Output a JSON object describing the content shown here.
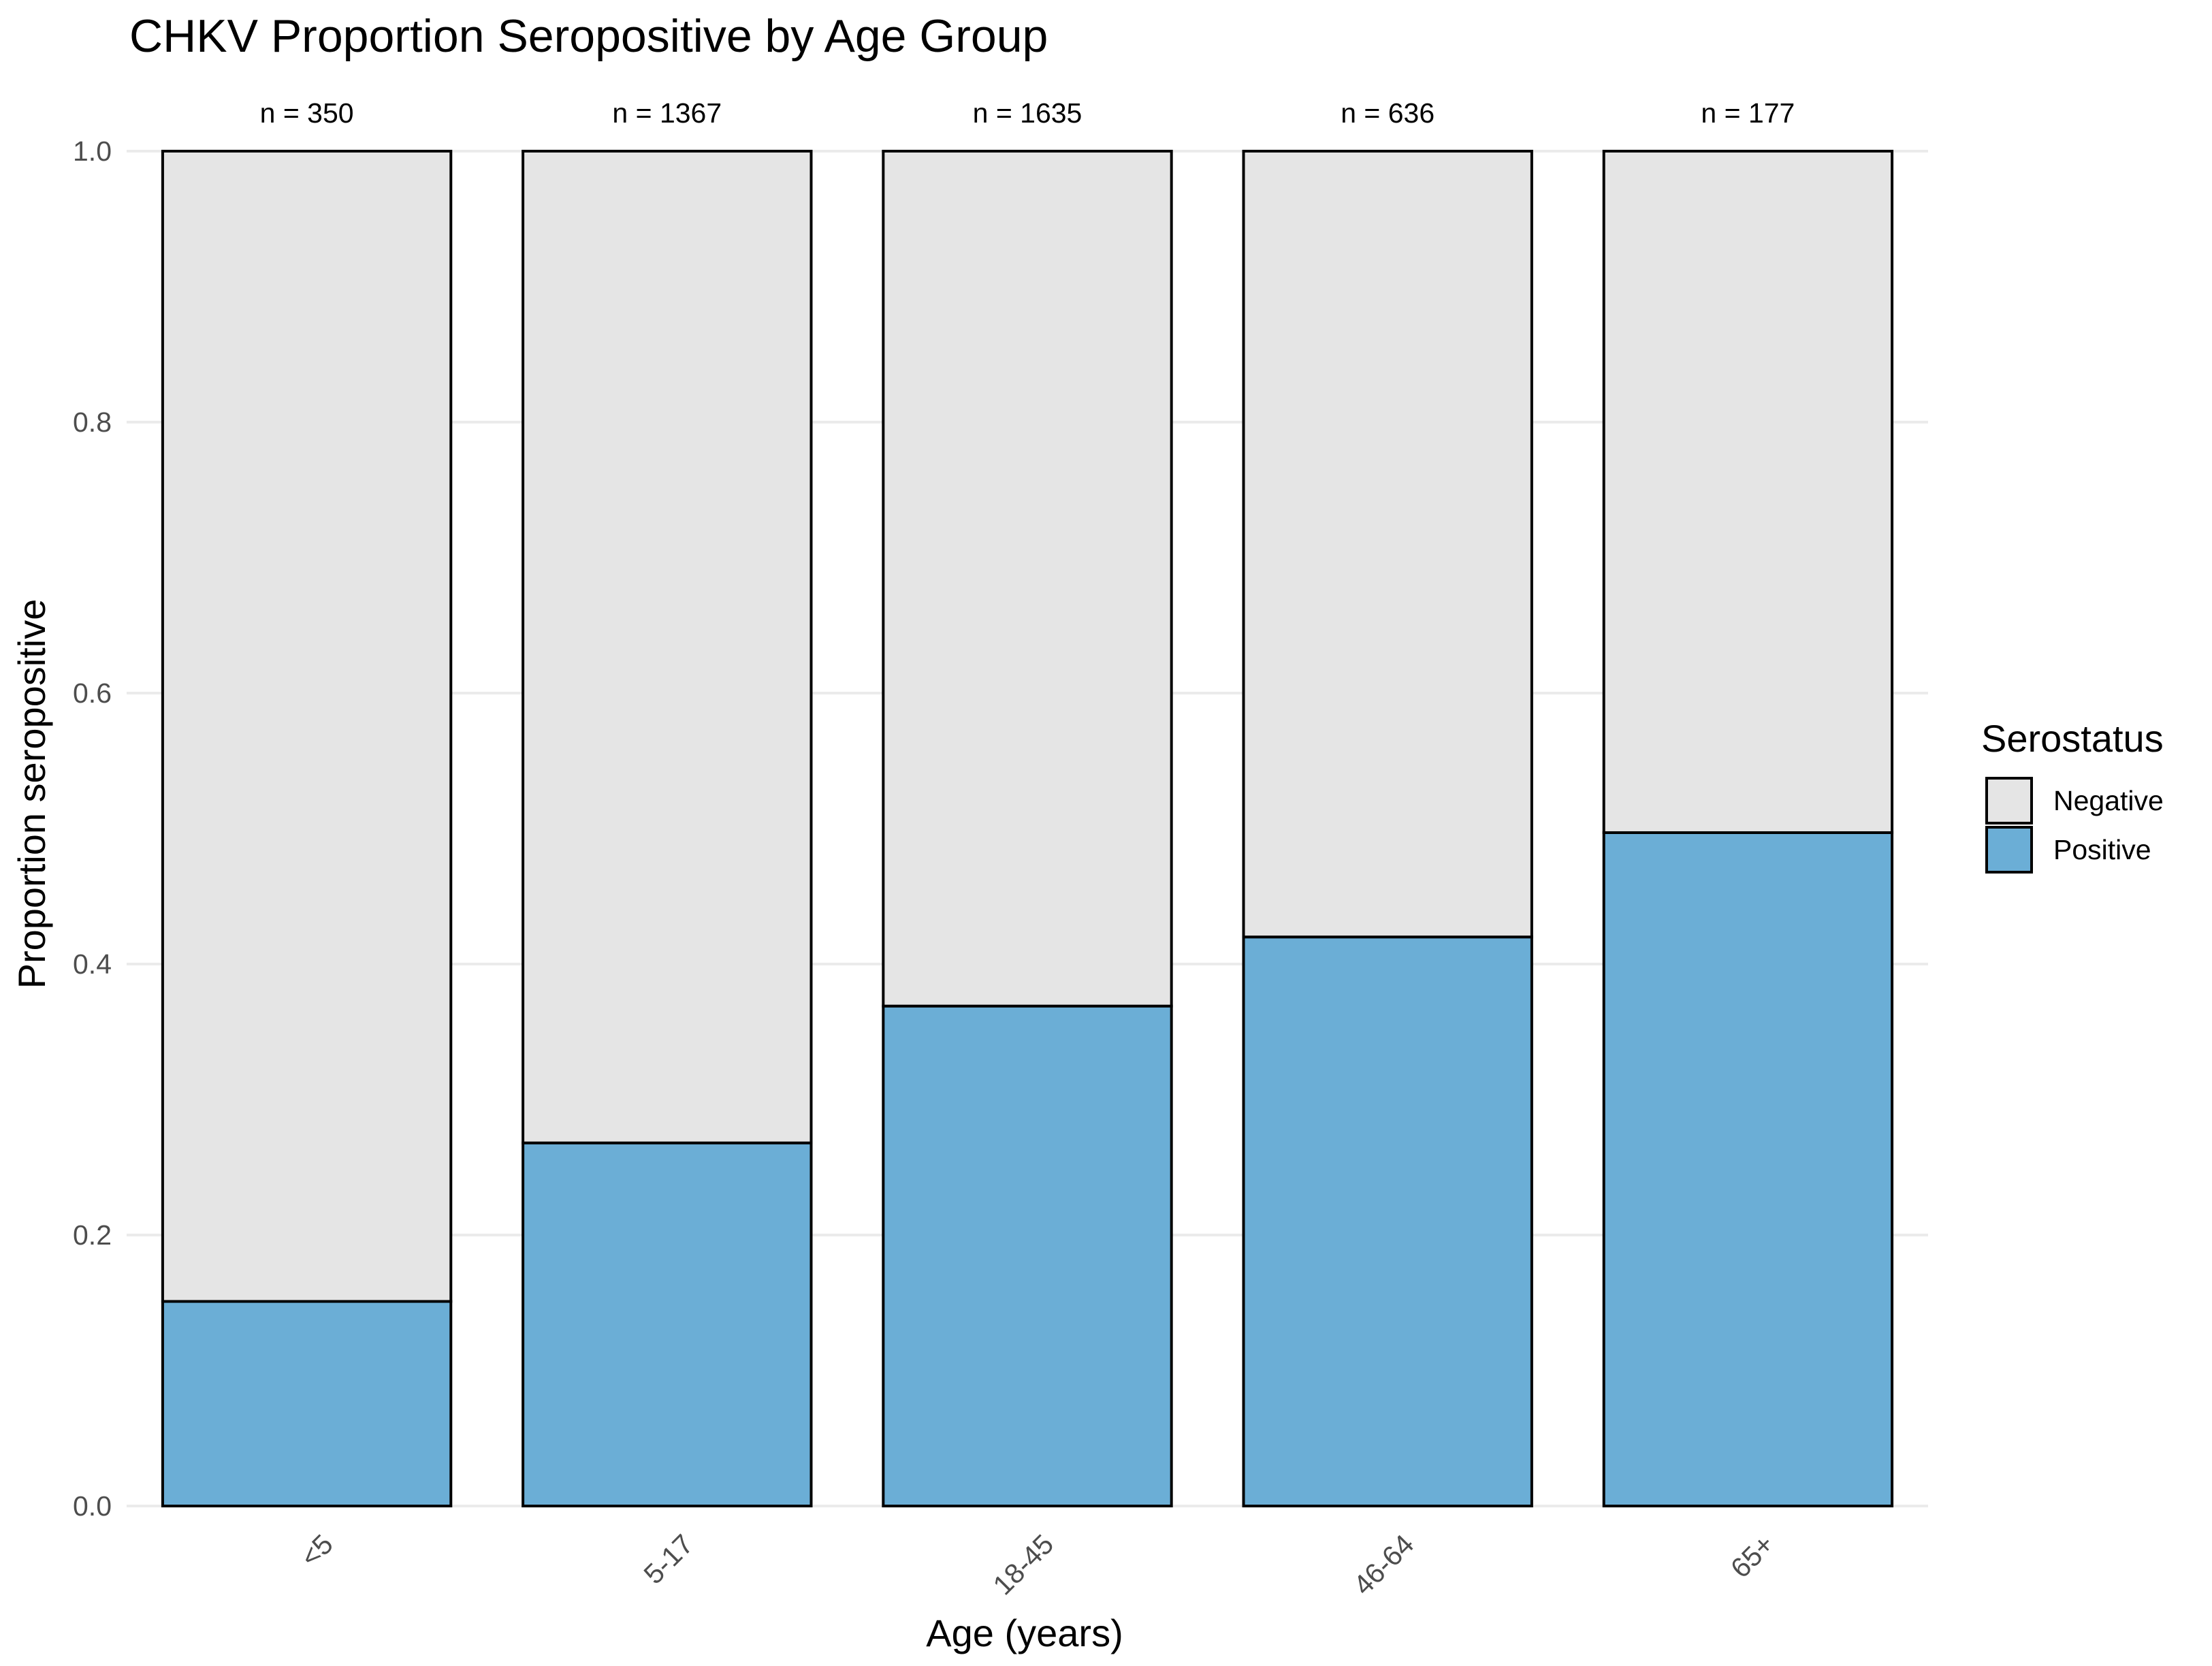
{
  "chart_data": {
    "type": "bar",
    "stacked": true,
    "title": "CHKV Proportion Seropositive by Age Group",
    "xlabel": "Age (years)",
    "ylabel": "Proportion seropositive",
    "ylim": [
      0,
      1
    ],
    "yticks": [
      "0.0",
      "0.2",
      "0.4",
      "0.6",
      "0.8",
      "1.0"
    ],
    "categories": [
      "<5",
      "5-17",
      "18-45",
      "46-64",
      "65+"
    ],
    "n_labels": [
      "n = 350",
      "n = 1367",
      "n = 1635",
      "n = 636",
      "n = 177"
    ],
    "series": [
      {
        "name": "Positive",
        "color": "#6baed6",
        "values": [
          0.151,
          0.268,
          0.369,
          0.42,
          0.497
        ]
      },
      {
        "name": "Negative",
        "color": "#e5e5e5",
        "values": [
          0.849,
          0.732,
          0.631,
          0.58,
          0.503
        ]
      }
    ],
    "grid": true,
    "legend": {
      "title": "Serostatus",
      "position": "right",
      "entries": [
        {
          "label": "Negative",
          "color": "#e5e5e5"
        },
        {
          "label": "Positive",
          "color": "#6baed6"
        }
      ]
    },
    "x_tick_rotation": 45
  }
}
